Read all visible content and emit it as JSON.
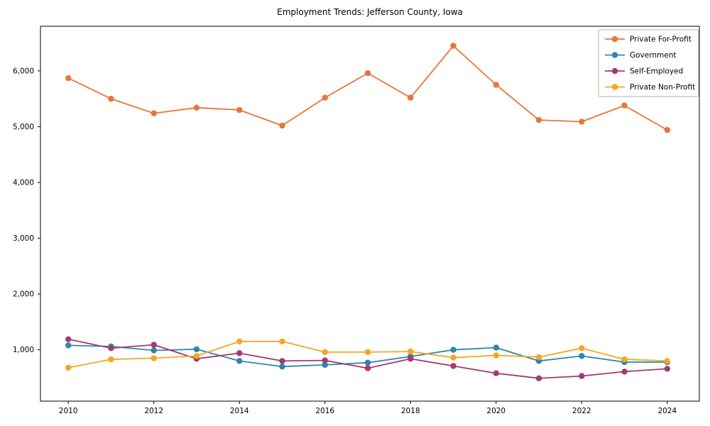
{
  "title": "Employment Trends: Jefferson County, Iowa",
  "chart_data": {
    "type": "line",
    "title": "Employment Trends: Jefferson County, Iowa",
    "x": [
      2010,
      2011,
      2012,
      2013,
      2014,
      2015,
      2016,
      2017,
      2018,
      2019,
      2020,
      2021,
      2022,
      2023,
      2024
    ],
    "series": [
      {
        "name": "Private For-Profit",
        "color": "#E8763C",
        "values": [
          5870,
          5500,
          5240,
          5340,
          5300,
          5020,
          5520,
          5960,
          5520,
          6450,
          5750,
          5120,
          5090,
          5380,
          4940
        ]
      },
      {
        "name": "Government",
        "color": "#2E86AB",
        "values": [
          1080,
          1060,
          990,
          1010,
          800,
          700,
          730,
          770,
          880,
          1000,
          1040,
          800,
          890,
          780,
          780
        ]
      },
      {
        "name": "Self-Employed",
        "color": "#A23B72",
        "values": [
          1190,
          1030,
          1090,
          840,
          940,
          800,
          810,
          670,
          840,
          710,
          580,
          490,
          530,
          610,
          660
        ]
      },
      {
        "name": "Private Non-Profit",
        "color": "#F5A623",
        "values": [
          680,
          830,
          850,
          890,
          1150,
          1150,
          960,
          960,
          970,
          860,
          900,
          870,
          1030,
          830,
          800
        ]
      }
    ],
    "xlim": [
      2009.35,
      2024.75
    ],
    "ylim": [
      80,
      6800
    ],
    "xticks": [
      2010,
      2012,
      2014,
      2016,
      2018,
      2020,
      2022,
      2024
    ],
    "xtick_labels": [
      "2010",
      "2012",
      "2014",
      "2016",
      "2018",
      "2020",
      "2022",
      "2024"
    ],
    "yticks": [
      1000,
      2000,
      3000,
      4000,
      5000,
      6000
    ],
    "ytick_labels": [
      "1,000",
      "2,000",
      "3,000",
      "4,000",
      "5,000",
      "6,000"
    ],
    "grid": false,
    "legend_position": "upper right",
    "axis_color": "#000000",
    "legend_border_color": "#b0b0b0"
  }
}
